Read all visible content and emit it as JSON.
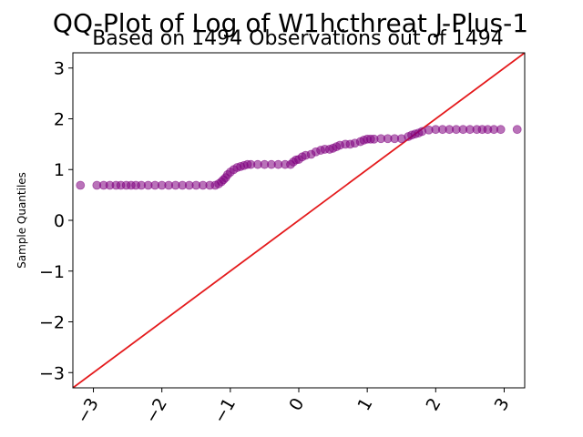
{
  "chart_data": {
    "type": "scatter",
    "title": "QQ-Plot of Log of W1hcthreat J-Plus-1",
    "subtitle": "Based on 1494 Observations out of 1494",
    "xlabel": "",
    "ylabel": "Sample Quantiles",
    "xlim": [
      -3.3,
      3.3
    ],
    "ylim": [
      -3.3,
      3.3
    ],
    "xticks": [
      -3,
      -2,
      -1,
      0,
      1,
      2,
      3
    ],
    "yticks": [
      -3,
      -2,
      -1,
      0,
      1,
      2,
      3
    ],
    "xtick_labels": [
      "−3",
      "−2",
      "−1",
      "0",
      "1",
      "2",
      "3"
    ],
    "ytick_labels": [
      "−3",
      "−2",
      "−1",
      "0",
      "1",
      "2",
      "3"
    ],
    "grid": false,
    "reference_line": {
      "slope": 1,
      "intercept": 0,
      "color": "#e41a1c"
    },
    "series": [
      {
        "color": "#800080",
        "x": [
          -3.19,
          -2.95,
          -2.85,
          -2.76,
          -2.67,
          -2.6,
          -2.52,
          -2.45,
          -2.38,
          -2.3,
          -2.2,
          -2.1,
          -2.0,
          -1.9,
          -1.8,
          -1.7,
          -1.6,
          -1.5,
          -1.4,
          -1.3,
          -1.22,
          -1.17,
          -1.13,
          -1.1,
          -1.07,
          -1.04,
          -1.0,
          -0.95,
          -0.9,
          -0.85,
          -0.8,
          -0.75,
          -0.7,
          -0.6,
          -0.5,
          -0.4,
          -0.3,
          -0.2,
          -0.12,
          -0.08,
          -0.04,
          0.0,
          0.05,
          0.1,
          0.18,
          0.25,
          0.32,
          0.38,
          0.45,
          0.5,
          0.55,
          0.6,
          0.68,
          0.75,
          0.82,
          0.9,
          0.95,
          1.0,
          1.05,
          1.1,
          1.2,
          1.3,
          1.4,
          1.5,
          1.6,
          1.65,
          1.7,
          1.75,
          1.8,
          1.9,
          2.0,
          2.1,
          2.2,
          2.3,
          2.4,
          2.5,
          2.6,
          2.68,
          2.76,
          2.85,
          2.95,
          3.19
        ],
        "y": [
          0.69,
          0.69,
          0.69,
          0.69,
          0.69,
          0.69,
          0.69,
          0.69,
          0.69,
          0.69,
          0.69,
          0.69,
          0.69,
          0.69,
          0.69,
          0.69,
          0.69,
          0.69,
          0.69,
          0.69,
          0.69,
          0.72,
          0.76,
          0.8,
          0.84,
          0.9,
          0.95,
          1.0,
          1.04,
          1.06,
          1.08,
          1.1,
          1.1,
          1.1,
          1.1,
          1.1,
          1.1,
          1.1,
          1.1,
          1.15,
          1.19,
          1.2,
          1.25,
          1.28,
          1.3,
          1.35,
          1.38,
          1.4,
          1.4,
          1.42,
          1.45,
          1.48,
          1.5,
          1.5,
          1.52,
          1.55,
          1.58,
          1.6,
          1.6,
          1.6,
          1.61,
          1.61,
          1.61,
          1.61,
          1.65,
          1.68,
          1.7,
          1.72,
          1.75,
          1.78,
          1.79,
          1.79,
          1.79,
          1.79,
          1.79,
          1.79,
          1.79,
          1.79,
          1.79,
          1.79,
          1.79,
          1.79
        ]
      }
    ]
  }
}
